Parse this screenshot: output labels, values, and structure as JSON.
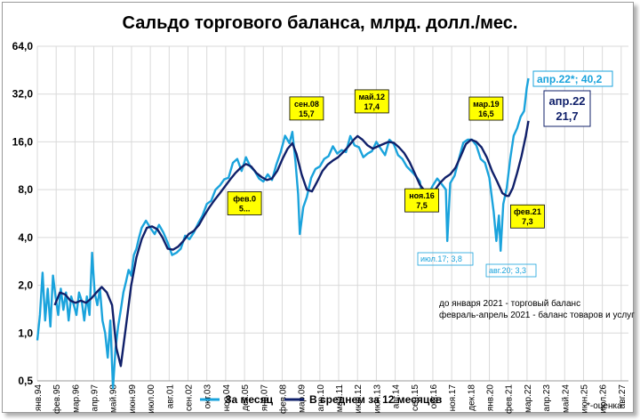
{
  "chart_data": {
    "type": "line",
    "title": "Сальдо торгового баланса, млрд. долл./мес.",
    "y_scale": "log2",
    "ylim": [
      0.5,
      64
    ],
    "y_ticks": [
      "0,5",
      "1,0",
      "2,0",
      "4,0",
      "8,0",
      "16,0",
      "32,0",
      "64,0"
    ],
    "y_tick_values": [
      0.5,
      1,
      2,
      4,
      8,
      16,
      32,
      64
    ],
    "x_ticks": [
      "янв.94",
      "фев.95",
      "мар.96",
      "апр.97",
      "май.98",
      "июн.99",
      "июл.00",
      "авг.01",
      "сен.02",
      "окт.03",
      "ноя.04",
      "дек.05",
      "янв.07",
      "фев.08",
      "мар.09",
      "апр.10",
      "май.11",
      "июн.12",
      "июл.13",
      "авг.14",
      "сен.15",
      "окт.16",
      "ноя.17",
      "дек.18",
      "янв.20",
      "фев.21",
      "мар.22",
      "апр.23",
      "май.24",
      "июн.25",
      "июл.26",
      "авг.27"
    ],
    "x_tick_year": [
      1994.0,
      1995.083,
      1996.167,
      1997.25,
      1998.333,
      1999.417,
      2000.5,
      2001.583,
      2002.667,
      2003.75,
      2004.833,
      2005.917,
      2007.0,
      2008.083,
      2009.167,
      2010.25,
      2011.333,
      2012.417,
      2013.5,
      2014.583,
      2015.667,
      2016.75,
      2017.833,
      2018.917,
      2020.0,
      2021.083,
      2022.167,
      2023.25,
      2024.333,
      2025.417,
      2026.5,
      2027.583
    ],
    "series": [
      {
        "name": "За месяц",
        "color": "#1aa3dc",
        "x": [
          1994.0,
          1994.15,
          1994.3,
          1994.45,
          1994.6,
          1994.75,
          1994.9,
          1995.05,
          1995.2,
          1995.35,
          1995.5,
          1995.65,
          1995.8,
          1995.95,
          1996.1,
          1996.25,
          1996.4,
          1996.55,
          1996.7,
          1996.85,
          1997.0,
          1997.15,
          1997.3,
          1997.45,
          1997.6,
          1997.75,
          1997.9,
          1998.05,
          1998.2,
          1998.35,
          1998.5,
          1998.65,
          1998.8,
          1998.95,
          1999.1,
          1999.25,
          1999.4,
          1999.55,
          1999.7,
          1999.85,
          2000.0,
          2000.25,
          2000.5,
          2000.75,
          2001.0,
          2001.25,
          2001.5,
          2001.75,
          2002.0,
          2002.25,
          2002.5,
          2002.75,
          2003.0,
          2003.25,
          2003.5,
          2003.75,
          2004.0,
          2004.25,
          2004.5,
          2004.75,
          2005.0,
          2005.25,
          2005.5,
          2005.75,
          2006.0,
          2006.25,
          2006.5,
          2006.75,
          2007.0,
          2007.25,
          2007.5,
          2007.75,
          2008.0,
          2008.25,
          2008.5,
          2008.67,
          2008.85,
          2009.0,
          2009.1,
          2009.3,
          2009.5,
          2009.75,
          2010.0,
          2010.25,
          2010.5,
          2010.75,
          2011.0,
          2011.25,
          2011.5,
          2011.75,
          2012.0,
          2012.25,
          2012.5,
          2012.75,
          2013.0,
          2013.25,
          2013.5,
          2013.75,
          2014.0,
          2014.25,
          2014.5,
          2014.75,
          2015.0,
          2015.25,
          2015.5,
          2015.75,
          2016.0,
          2016.15,
          2016.3,
          2016.5,
          2016.75,
          2017.0,
          2017.25,
          2017.5,
          2017.58,
          2017.75,
          2018.0,
          2018.25,
          2018.5,
          2018.75,
          2019.0,
          2019.25,
          2019.5,
          2019.75,
          2020.0,
          2020.25,
          2020.4,
          2020.55,
          2020.65,
          2020.8,
          2021.0,
          2021.2,
          2021.4,
          2021.6,
          2021.8,
          2022.0,
          2022.15,
          2022.25
        ],
        "values": [
          0.9,
          1.3,
          2.4,
          1.2,
          1.9,
          1.1,
          2.3,
          1.7,
          1.3,
          1.9,
          1.4,
          1.8,
          1.2,
          1.7,
          1.5,
          1.3,
          1.8,
          1.6,
          1.2,
          1.7,
          1.3,
          3.2,
          1.8,
          1.5,
          1.9,
          1.2,
          1.0,
          0.7,
          1.2,
          0.45,
          0.8,
          1.1,
          1.4,
          1.8,
          2.1,
          2.5,
          2.3,
          3.1,
          3.4,
          4.0,
          4.6,
          5.1,
          4.6,
          4.2,
          4.8,
          4.3,
          3.7,
          3.1,
          3.2,
          3.4,
          4.1,
          3.9,
          4.3,
          4.9,
          5.5,
          6.5,
          6.8,
          8.0,
          8.5,
          9.3,
          9.5,
          11.8,
          12.5,
          10.5,
          12.8,
          11.2,
          10.5,
          9.4,
          9.0,
          10.0,
          9.2,
          11.5,
          13.8,
          17.5,
          15.7,
          18.5,
          12.0,
          7.5,
          4.2,
          6.2,
          7.2,
          9.5,
          10.8,
          11.2,
          12.5,
          13.0,
          15.0,
          13.5,
          14.2,
          13.8,
          17.4,
          15.2,
          14.8,
          12.8,
          13.5,
          14.0,
          16.0,
          14.5,
          13.2,
          16.5,
          15.5,
          13.2,
          12.5,
          11.2,
          10.5,
          9.8,
          9.0,
          7.2,
          6.5,
          7.5,
          8.5,
          9.4,
          8.7,
          8.0,
          3.8,
          8.8,
          9.8,
          12.5,
          15.8,
          16.5,
          16.5,
          15.2,
          12.5,
          11.8,
          9.5,
          5.8,
          3.8,
          5.5,
          3.3,
          6.5,
          8.2,
          12.5,
          17.5,
          19.5,
          23.0,
          25.0,
          35.0,
          40.2
        ]
      },
      {
        "name": "В среднем за 12 месяцев",
        "color": "#10206a",
        "x": [
          1995.0,
          1995.3,
          1995.6,
          1995.9,
          1996.2,
          1996.5,
          1996.8,
          1997.1,
          1997.4,
          1997.7,
          1998.0,
          1998.3,
          1998.55,
          1998.8,
          1999.1,
          1999.4,
          1999.7,
          2000.0,
          2000.3,
          2000.6,
          2000.9,
          2001.2,
          2001.5,
          2001.8,
          2002.1,
          2002.4,
          2002.7,
          2003.0,
          2003.3,
          2003.6,
          2003.9,
          2004.2,
          2004.5,
          2004.8,
          2005.1,
          2005.4,
          2005.7,
          2006.0,
          2006.3,
          2006.6,
          2006.9,
          2007.2,
          2007.5,
          2007.8,
          2008.1,
          2008.4,
          2008.67,
          2008.9,
          2009.2,
          2009.5,
          2009.8,
          2010.1,
          2010.4,
          2010.7,
          2011.0,
          2011.3,
          2011.6,
          2011.9,
          2012.2,
          2012.42,
          2012.7,
          2013.0,
          2013.3,
          2013.6,
          2013.9,
          2014.2,
          2014.5,
          2014.8,
          2015.1,
          2015.4,
          2015.7,
          2016.0,
          2016.3,
          2016.55,
          2016.85,
          2017.15,
          2017.45,
          2017.75,
          2018.05,
          2018.35,
          2018.65,
          2018.95,
          2019.25,
          2019.55,
          2019.85,
          2020.15,
          2020.45,
          2020.75,
          2021.0,
          2021.12,
          2021.35,
          2021.6,
          2021.85,
          2022.1,
          2022.25
        ],
        "values": [
          1.5,
          1.8,
          1.75,
          1.6,
          1.55,
          1.6,
          1.55,
          1.65,
          1.8,
          1.95,
          1.8,
          1.5,
          0.8,
          0.62,
          1.1,
          2.0,
          3.0,
          3.9,
          4.6,
          4.7,
          4.5,
          4.0,
          3.4,
          3.35,
          3.5,
          3.8,
          4.2,
          4.4,
          4.8,
          5.5,
          6.2,
          6.9,
          7.6,
          8.4,
          9.3,
          10.2,
          11.0,
          11.6,
          11.2,
          10.2,
          9.6,
          9.2,
          9.4,
          10.5,
          12.5,
          14.5,
          15.7,
          13.5,
          10.0,
          8.0,
          7.8,
          9.0,
          10.5,
          11.5,
          12.2,
          12.8,
          13.8,
          15.0,
          16.5,
          17.4,
          16.5,
          15.2,
          14.5,
          15.0,
          15.5,
          16.0,
          15.8,
          14.8,
          13.6,
          12.0,
          10.2,
          8.6,
          7.8,
          7.5,
          7.9,
          8.8,
          9.5,
          10.0,
          11.0,
          13.0,
          15.5,
          16.5,
          16.0,
          14.8,
          12.8,
          10.5,
          9.0,
          7.6,
          7.3,
          7.3,
          8.2,
          10.2,
          13.0,
          17.5,
          21.7
        ]
      }
    ],
    "callouts": [
      {
        "line1": "сен.08",
        "line2": "15,7",
        "x": 2008.67,
        "y": 15.7
      },
      {
        "line1": "май.12",
        "line2": "17,4",
        "x": 2012.42,
        "y": 17.4
      },
      {
        "line1": "мар.19",
        "line2": "16,5",
        "x": 2019.2,
        "y": 16.5
      },
      {
        "line1": "фев.0",
        "line2": "5...",
        "x": 2005.1,
        "y": 9.3
      },
      {
        "line1": "ноя.16",
        "line2": "7,5",
        "x": 2016.83,
        "y": 7.5
      },
      {
        "line1": "фев.21",
        "line2": "7,3",
        "x": 2021.12,
        "y": 7.3
      }
    ],
    "blue_notes": [
      "июл.17; 3,8",
      "авг.20; 3,3"
    ],
    "latest_month": "апр.22*; 40,2",
    "latest_avg_month": "апр.22",
    "latest_avg_value": "21,7",
    "source_note_1": "до января 2021 - торговый баланс",
    "source_note_2": "февраль-апрель 2021 - баланс товаров и услуг",
    "legend": [
      "За месяц",
      "В среднем за 12 месяцев"
    ],
    "footnote": "*-оценка",
    "grid": true,
    "legend_position": "bottom"
  }
}
